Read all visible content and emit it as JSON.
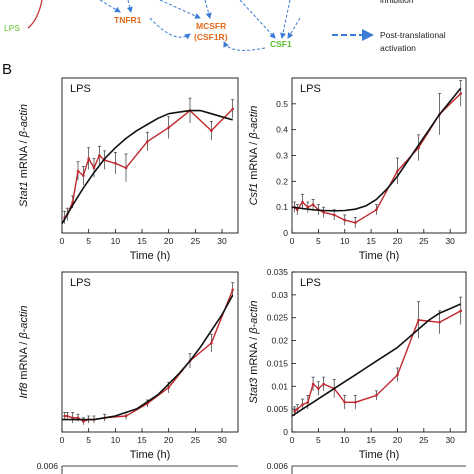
{
  "section_label": "B",
  "diagram": {
    "nodes": [
      {
        "id": "lps",
        "label": "LPS",
        "color": "#5cbf2a"
      },
      {
        "id": "tnfr1",
        "label": "TNFR1",
        "color": "#e06a1b"
      },
      {
        "id": "mcsfr",
        "label": "MCSFR",
        "color": "#e06a1b"
      },
      {
        "id": "csf1r",
        "label": "(CSF1R)",
        "color": "#e06a1b"
      },
      {
        "id": "csf1",
        "label": "CSF1",
        "color": "#5cbf2a"
      }
    ],
    "legend": {
      "inhibition_label": "inhibition",
      "activation_label_line1": "Post-translational",
      "activation_label_line2": "activation",
      "arrow_color": "#3a7bd5"
    }
  },
  "colors": {
    "data_line": "#c0282d",
    "fit_line": "#111111",
    "error_bar": "#333333"
  },
  "chart_data": [
    {
      "type": "line",
      "panel_label": "LPS",
      "ylabel_gene": "Stat1",
      "ylabel_rest": " mRNA / ",
      "ylabel_norm": "β-actin",
      "xlabel": "Time (h)",
      "xlim": [
        0,
        33
      ],
      "ylim": [
        0,
        0.1
      ],
      "xticks": [
        0,
        5,
        10,
        15,
        20,
        25,
        30
      ],
      "yticks": [],
      "ytick_labels": [],
      "series": [
        {
          "role": "data",
          "x": [
            0.5,
            1,
            2,
            3,
            4,
            5,
            6,
            7,
            8,
            10,
            12,
            16,
            20,
            24,
            28,
            32
          ],
          "y": [
            0.01,
            0.012,
            0.02,
            0.04,
            0.037,
            0.048,
            0.042,
            0.05,
            0.047,
            0.045,
            0.042,
            0.059,
            0.068,
            0.079,
            0.066,
            0.08
          ],
          "err": [
            0.004,
            0.004,
            0.004,
            0.006,
            0.006,
            0.007,
            0.006,
            0.006,
            0.006,
            0.007,
            0.009,
            0.006,
            0.007,
            0.008,
            0.006,
            0.006
          ]
        },
        {
          "role": "fit",
          "x": [
            0,
            2,
            4,
            6,
            8,
            10,
            12,
            14,
            16,
            18,
            20,
            22,
            24,
            26,
            28,
            30,
            32
          ],
          "y": [
            0.006,
            0.018,
            0.029,
            0.039,
            0.048,
            0.055,
            0.061,
            0.066,
            0.07,
            0.074,
            0.077,
            0.078,
            0.079,
            0.079,
            0.077,
            0.075,
            0.073
          ]
        }
      ]
    },
    {
      "type": "line",
      "panel_label": "LPS",
      "ylabel_gene": "Csf1",
      "ylabel_rest": " mRNA / ",
      "ylabel_norm": "β-actin",
      "xlabel": "Time (h)",
      "xlim": [
        0,
        33
      ],
      "ylim": [
        0,
        0.6
      ],
      "xticks": [
        0,
        5,
        10,
        15,
        20,
        25,
        30
      ],
      "yticks": [
        0,
        0.1,
        0.2,
        0.3,
        0.4,
        0.5
      ],
      "ytick_labels": [
        "0",
        "0.1",
        "0.2",
        "0.3",
        "0.4",
        "0.5"
      ],
      "series": [
        {
          "role": "data",
          "x": [
            0.5,
            1,
            2,
            3,
            4,
            5,
            6,
            8,
            10,
            12,
            16,
            20,
            24,
            28,
            32
          ],
          "y": [
            0.1,
            0.09,
            0.12,
            0.1,
            0.11,
            0.09,
            0.08,
            0.07,
            0.05,
            0.04,
            0.09,
            0.24,
            0.33,
            0.46,
            0.54
          ],
          "err": [
            0.02,
            0.02,
            0.03,
            0.02,
            0.02,
            0.02,
            0.02,
            0.02,
            0.02,
            0.02,
            0.02,
            0.05,
            0.05,
            0.08,
            0.05
          ]
        },
        {
          "role": "fit",
          "x": [
            0,
            2,
            4,
            6,
            8,
            10,
            12,
            14,
            16,
            18,
            20,
            22,
            24,
            26,
            28,
            30,
            32
          ],
          "y": [
            0.1,
            0.095,
            0.09,
            0.087,
            0.086,
            0.087,
            0.092,
            0.105,
            0.13,
            0.17,
            0.22,
            0.28,
            0.34,
            0.4,
            0.46,
            0.51,
            0.56
          ]
        }
      ]
    },
    {
      "type": "line",
      "panel_label": "LPS",
      "ylabel_gene": "Irf8",
      "ylabel_rest": " mRNA / ",
      "ylabel_norm": "β-actin",
      "xlabel": "Time (h)",
      "xlim": [
        0,
        33
      ],
      "ylim": [
        0,
        0.09
      ],
      "xticks": [
        0,
        5,
        10,
        15,
        20,
        25,
        30
      ],
      "yticks": [],
      "ytick_labels": [],
      "series": [
        {
          "role": "data",
          "x": [
            0.5,
            1,
            2,
            3,
            4,
            5,
            6,
            8,
            12,
            16,
            20,
            24,
            28,
            32
          ],
          "y": [
            0.009,
            0.009,
            0.008,
            0.008,
            0.006,
            0.007,
            0.007,
            0.008,
            0.009,
            0.016,
            0.025,
            0.04,
            0.05,
            0.08
          ],
          "err": [
            0.002,
            0.002,
            0.003,
            0.002,
            0.002,
            0.002,
            0.002,
            0.002,
            0.002,
            0.002,
            0.003,
            0.004,
            0.005,
            0.004
          ]
        },
        {
          "role": "fit",
          "x": [
            0,
            2,
            4,
            6,
            8,
            10,
            12,
            14,
            16,
            18,
            20,
            22,
            24,
            26,
            28,
            30,
            32
          ],
          "y": [
            0.007,
            0.007,
            0.007,
            0.007,
            0.008,
            0.009,
            0.011,
            0.013,
            0.017,
            0.021,
            0.027,
            0.033,
            0.04,
            0.048,
            0.057,
            0.066,
            0.077
          ]
        }
      ]
    },
    {
      "type": "line",
      "panel_label": "LPS",
      "ylabel_gene": "Stat3",
      "ylabel_rest": " mRNA / ",
      "ylabel_norm": "β-actin",
      "xlabel": "Time (h)",
      "xlim": [
        0,
        33
      ],
      "ylim": [
        0,
        0.035
      ],
      "xticks": [
        0,
        5,
        10,
        15,
        20,
        25,
        30
      ],
      "yticks": [
        0,
        0.005,
        0.01,
        0.015,
        0.02,
        0.025,
        0.03,
        0.035
      ],
      "ytick_labels": [
        "0",
        "0.005",
        "0.01",
        "0.015",
        "0.02",
        "0.025",
        "0.03",
        "0.035"
      ],
      "series": [
        {
          "role": "data",
          "x": [
            0.5,
            1,
            2,
            3,
            4,
            5,
            6,
            8,
            10,
            12,
            16,
            20,
            24,
            28,
            32
          ],
          "y": [
            0.0045,
            0.005,
            0.006,
            0.0065,
            0.0105,
            0.0095,
            0.0105,
            0.0095,
            0.0065,
            0.0065,
            0.008,
            0.0125,
            0.0245,
            0.024,
            0.0265
          ],
          "err": [
            0.001,
            0.001,
            0.0012,
            0.0015,
            0.0015,
            0.0015,
            0.0015,
            0.002,
            0.0015,
            0.0015,
            0.001,
            0.0015,
            0.004,
            0.0025,
            0.003
          ]
        },
        {
          "role": "fit",
          "x": [
            0,
            2,
            4,
            6,
            8,
            10,
            12,
            14,
            16,
            18,
            20,
            22,
            24,
            26,
            28,
            30,
            32
          ],
          "y": [
            0.0035,
            0.005,
            0.0065,
            0.008,
            0.0095,
            0.011,
            0.0125,
            0.014,
            0.0155,
            0.017,
            0.0185,
            0.0205,
            0.0225,
            0.0245,
            0.026,
            0.027,
            0.028
          ]
        }
      ]
    }
  ],
  "partial_panels": [
    {
      "ytick_label": "0.006"
    },
    {
      "ytick_label": "0.006"
    }
  ]
}
